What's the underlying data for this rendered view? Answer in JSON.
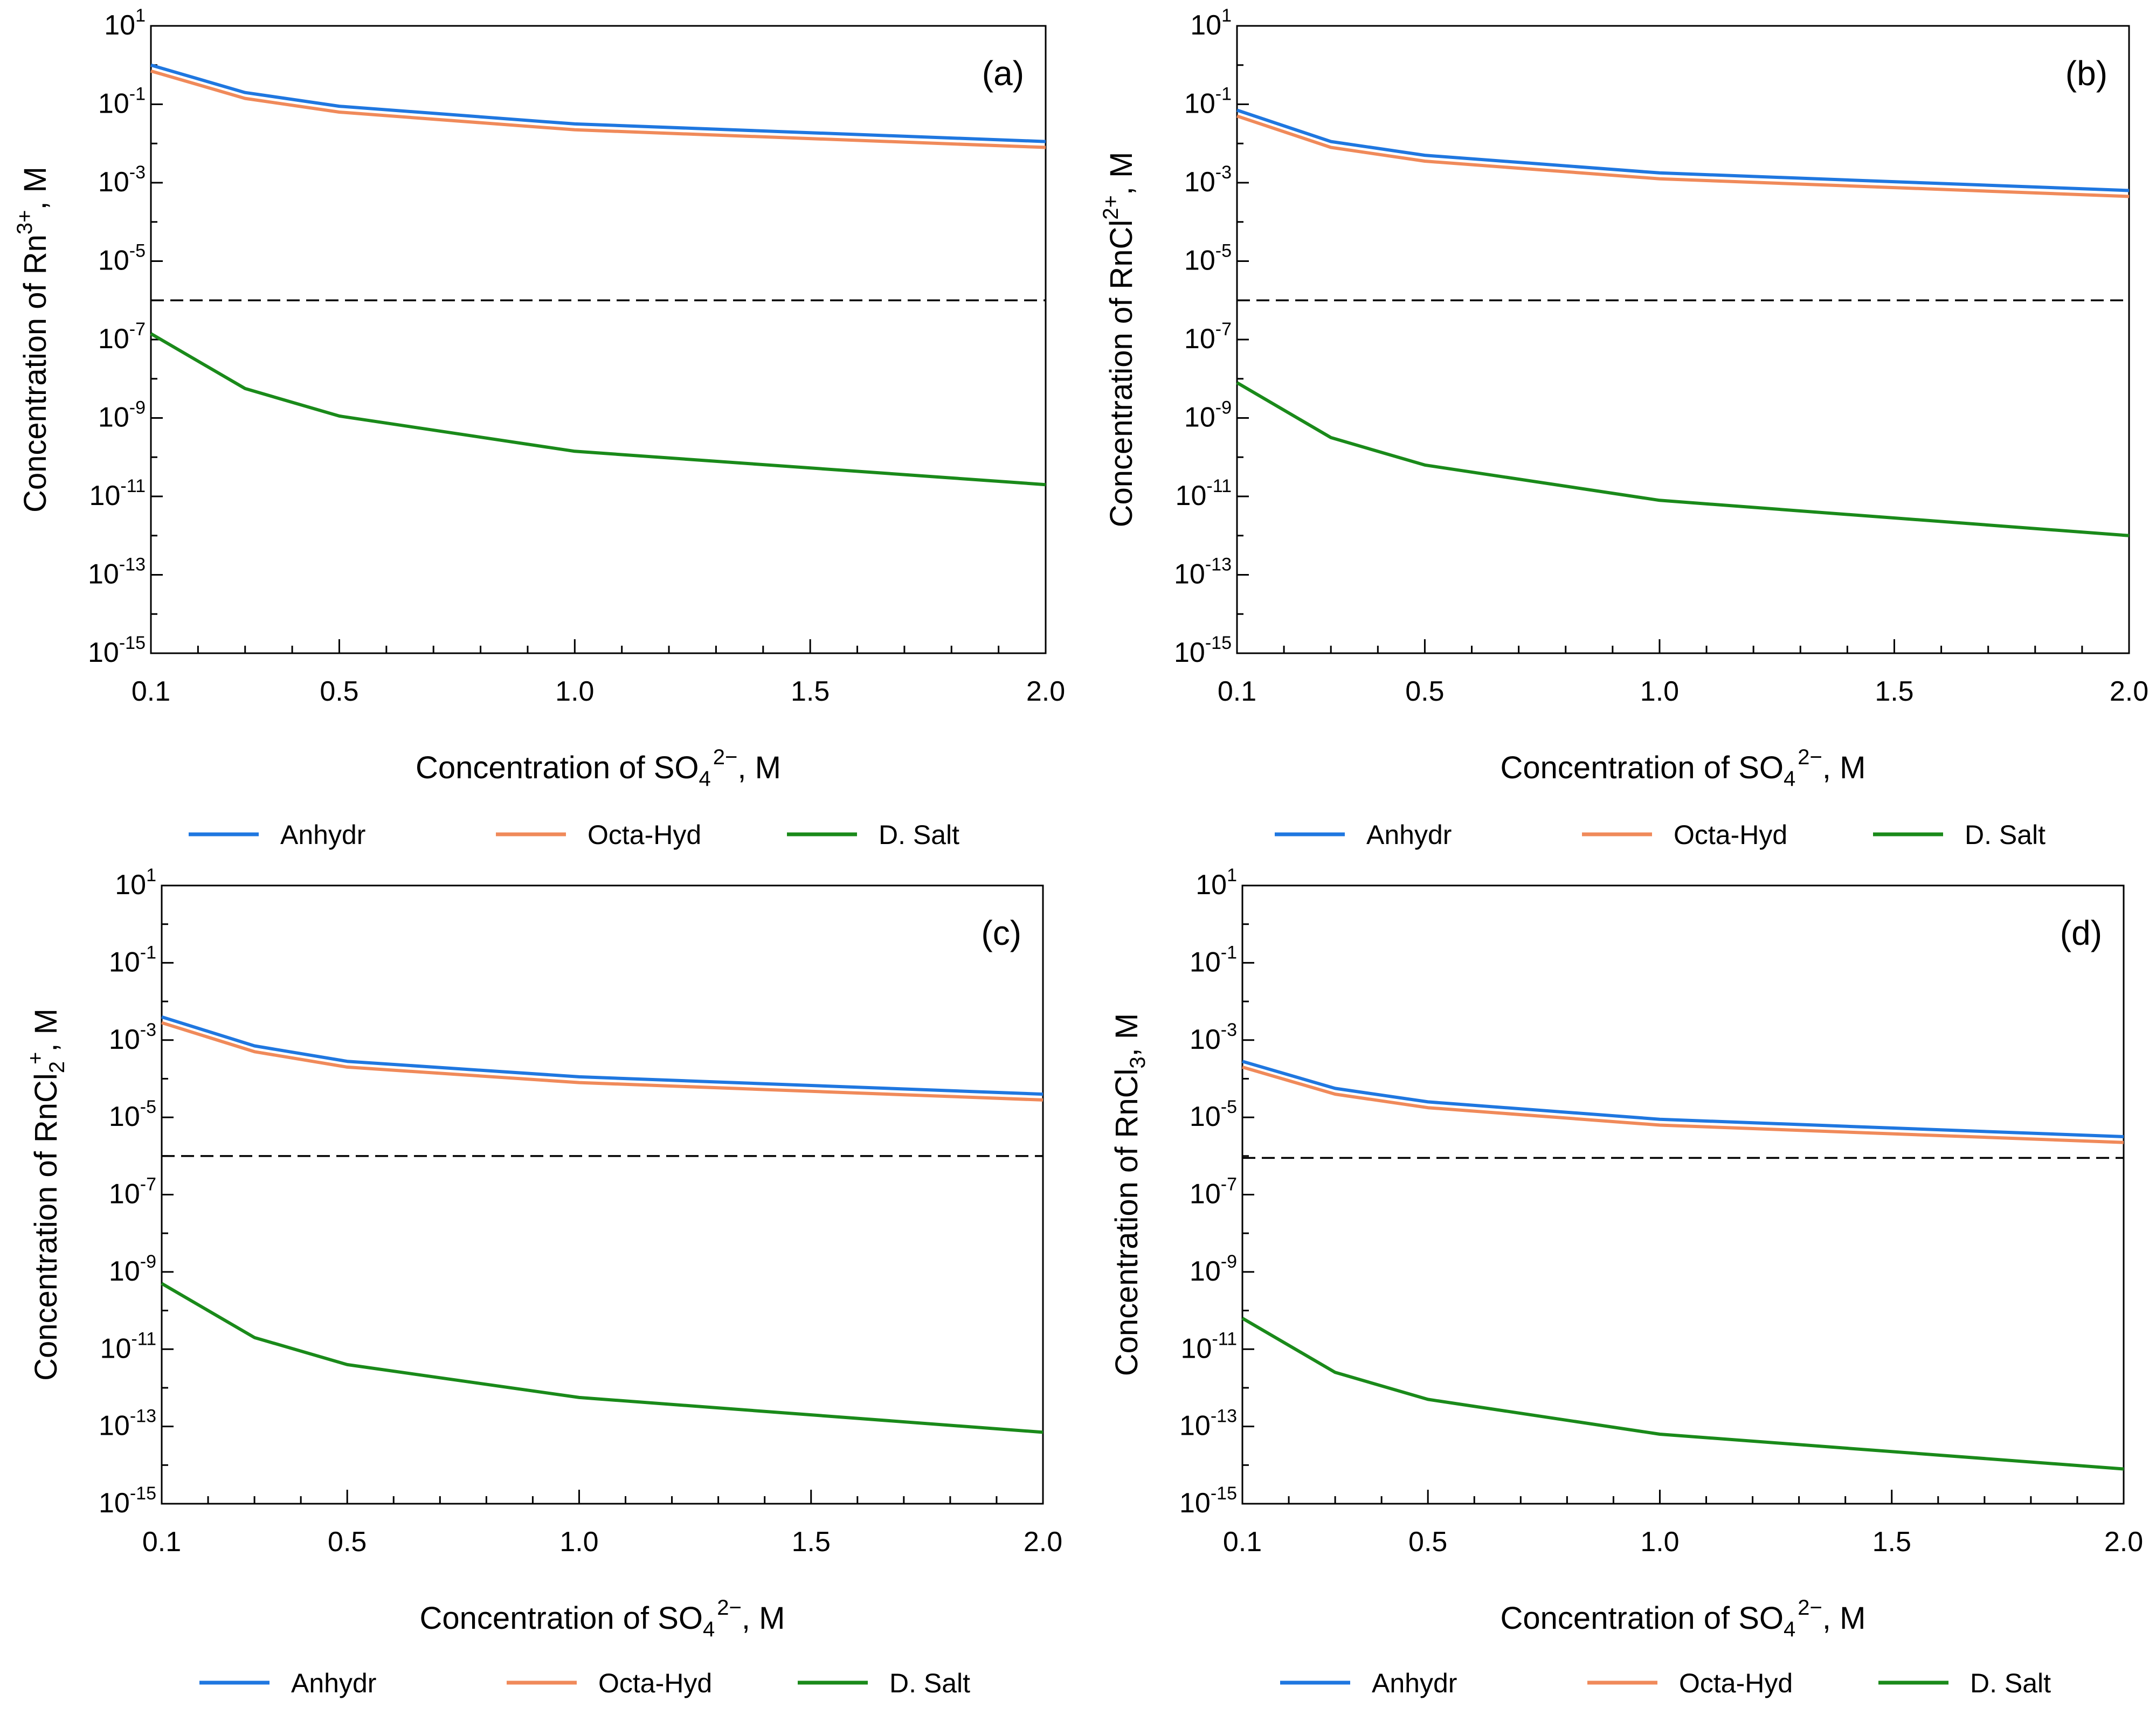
{
  "legend_labels": [
    "Anhydr",
    "Octa-Hyd",
    "D. Salt"
  ],
  "chart_data": [
    {
      "type": "line",
      "panel": "(a)",
      "ylabel": {
        "prefix": "Concentration of Rn",
        "sub": "",
        "sup": "3+",
        "suffix": ", M"
      },
      "xlabel": {
        "prefix": "Concentration of SO",
        "sub": "4",
        "sup": "2−",
        "suffix": ", M"
      },
      "x_ticks": [
        "0.1",
        "0.5",
        "1.0",
        "1.5",
        "2.0"
      ],
      "y_ticks": [
        {
          "base": "10",
          "exp": "1"
        },
        {
          "base": "10",
          "exp": "-1"
        },
        {
          "base": "10",
          "exp": "-3"
        },
        {
          "base": "10",
          "exp": "-5"
        },
        {
          "base": "10",
          "exp": "-7"
        },
        {
          "base": "10",
          "exp": "-9"
        },
        {
          "base": "10",
          "exp": "-11"
        },
        {
          "base": "10",
          "exp": "-13"
        },
        {
          "base": "10",
          "exp": "-15"
        }
      ],
      "xlim": [
        0.1,
        2.0
      ],
      "ylim_log10": [
        -15,
        1
      ],
      "x": [
        0.1,
        0.3,
        0.5,
        1.0,
        2.0
      ],
      "threshold_log10": -6,
      "series": [
        {
          "name": "Anhydr",
          "color": "#1f77e0",
          "log10_values": [
            0.0,
            -0.7,
            -1.05,
            -1.5,
            -1.95
          ]
        },
        {
          "name": "Octa-Hyd",
          "color": "#f08a5a",
          "log10_values": [
            -0.15,
            -0.85,
            -1.2,
            -1.65,
            -2.1
          ]
        },
        {
          "name": "D. Salt",
          "color": "#1a8a1a",
          "log10_values": [
            -6.85,
            -8.25,
            -8.95,
            -9.85,
            -10.7
          ]
        }
      ]
    },
    {
      "type": "line",
      "panel": "(b)",
      "ylabel": {
        "prefix": "Concentration of RnCl",
        "sub": "",
        "sup": "2+",
        "suffix": ", M"
      },
      "xlabel": {
        "prefix": "Concentration of SO",
        "sub": "4",
        "sup": "2−",
        "suffix": ", M"
      },
      "x_ticks": [
        "0.1",
        "0.5",
        "1.0",
        "1.5",
        "2.0"
      ],
      "y_ticks": [
        {
          "base": "10",
          "exp": "1"
        },
        {
          "base": "10",
          "exp": "-1"
        },
        {
          "base": "10",
          "exp": "-3"
        },
        {
          "base": "10",
          "exp": "-5"
        },
        {
          "base": "10",
          "exp": "-7"
        },
        {
          "base": "10",
          "exp": "-9"
        },
        {
          "base": "10",
          "exp": "-11"
        },
        {
          "base": "10",
          "exp": "-13"
        },
        {
          "base": "10",
          "exp": "-15"
        }
      ],
      "xlim": [
        0.1,
        2.0
      ],
      "ylim_log10": [
        -15,
        1
      ],
      "x": [
        0.1,
        0.3,
        0.5,
        1.0,
        2.0
      ],
      "threshold_log10": -6,
      "series": [
        {
          "name": "Anhydr",
          "color": "#1f77e0",
          "log10_values": [
            -1.15,
            -1.95,
            -2.3,
            -2.75,
            -3.2
          ]
        },
        {
          "name": "Octa-Hyd",
          "color": "#f08a5a",
          "log10_values": [
            -1.3,
            -2.1,
            -2.45,
            -2.9,
            -3.35
          ]
        },
        {
          "name": "D. Salt",
          "color": "#1a8a1a",
          "log10_values": [
            -8.1,
            -9.5,
            -10.2,
            -11.1,
            -12.0
          ]
        }
      ]
    },
    {
      "type": "line",
      "panel": "(c)",
      "ylabel": {
        "prefix": "Concentration of RnCl",
        "sub": "2",
        "sup": "+",
        "suffix": ", M"
      },
      "xlabel": {
        "prefix": "Concentration of SO",
        "sub": "4",
        "sup": "2−",
        "suffix": ", M"
      },
      "x_ticks": [
        "0.1",
        "0.5",
        "1.0",
        "1.5",
        "2.0"
      ],
      "y_ticks": [
        {
          "base": "10",
          "exp": "1"
        },
        {
          "base": "10",
          "exp": "-1"
        },
        {
          "base": "10",
          "exp": "-3"
        },
        {
          "base": "10",
          "exp": "-5"
        },
        {
          "base": "10",
          "exp": "-7"
        },
        {
          "base": "10",
          "exp": "-9"
        },
        {
          "base": "10",
          "exp": "-11"
        },
        {
          "base": "10",
          "exp": "-13"
        },
        {
          "base": "10",
          "exp": "-15"
        }
      ],
      "xlim": [
        0.1,
        2.0
      ],
      "ylim_log10": [
        -15,
        1
      ],
      "x": [
        0.1,
        0.3,
        0.5,
        1.0,
        2.0
      ],
      "threshold_log10": -6,
      "series": [
        {
          "name": "Anhydr",
          "color": "#1f77e0",
          "log10_values": [
            -2.4,
            -3.15,
            -3.55,
            -3.95,
            -4.4
          ]
        },
        {
          "name": "Octa-Hyd",
          "color": "#f08a5a",
          "log10_values": [
            -2.55,
            -3.3,
            -3.7,
            -4.1,
            -4.55
          ]
        },
        {
          "name": "D. Salt",
          "color": "#1a8a1a",
          "log10_values": [
            -9.3,
            -10.7,
            -11.4,
            -12.25,
            -13.15
          ]
        }
      ]
    },
    {
      "type": "line",
      "panel": "(d)",
      "ylabel": {
        "prefix": "Concentration of RnCl",
        "sub": "3",
        "sup": "",
        "suffix": ", M"
      },
      "xlabel": {
        "prefix": "Concentration of SO",
        "sub": "4",
        "sup": "2−",
        "suffix": ", M"
      },
      "x_ticks": [
        "0.1",
        "0.5",
        "1.0",
        "1.5",
        "2.0"
      ],
      "y_ticks": [
        {
          "base": "10",
          "exp": "1"
        },
        {
          "base": "10",
          "exp": "-1"
        },
        {
          "base": "10",
          "exp": "-3"
        },
        {
          "base": "10",
          "exp": "-5"
        },
        {
          "base": "10",
          "exp": "-7"
        },
        {
          "base": "10",
          "exp": "-9"
        },
        {
          "base": "10",
          "exp": "-11"
        },
        {
          "base": "10",
          "exp": "-13"
        },
        {
          "base": "10",
          "exp": "-15"
        }
      ],
      "xlim": [
        0.1,
        2.0
      ],
      "ylim_log10": [
        -15,
        1
      ],
      "x": [
        0.1,
        0.3,
        0.5,
        1.0,
        2.0
      ],
      "threshold_log10": -6.05,
      "series": [
        {
          "name": "Anhydr",
          "color": "#1f77e0",
          "log10_values": [
            -3.55,
            -4.25,
            -4.6,
            -5.05,
            -5.5
          ]
        },
        {
          "name": "Octa-Hyd",
          "color": "#f08a5a",
          "log10_values": [
            -3.7,
            -4.4,
            -4.75,
            -5.2,
            -5.65
          ]
        },
        {
          "name": "D. Salt",
          "color": "#1a8a1a",
          "log10_values": [
            -10.2,
            -11.6,
            -12.3,
            -13.2,
            -14.1
          ]
        }
      ]
    }
  ]
}
